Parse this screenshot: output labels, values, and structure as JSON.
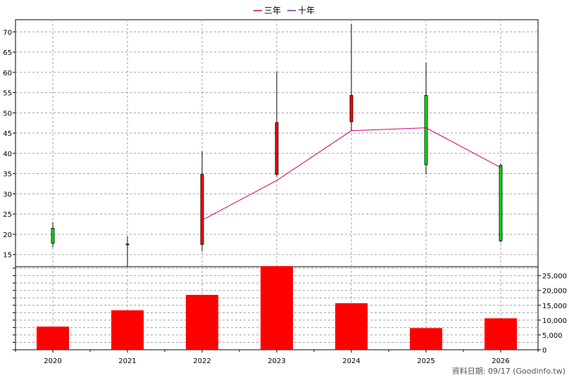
{
  "chart_data": [
    {
      "type": "candlestick",
      "categories": [
        "2020",
        "2021",
        "2022",
        "2023",
        "2024",
        "2025",
        "2026"
      ],
      "ohlc": [
        {
          "x": "2020",
          "open": 21.5,
          "high": 23.0,
          "low": 16.8,
          "close": 17.8
        },
        {
          "x": "2021",
          "open": 17.6,
          "high": 19.5,
          "low": 11.8,
          "close": 17.4
        },
        {
          "x": "2022",
          "open": 17.5,
          "high": 40.5,
          "low": 15.8,
          "close": 34.8
        },
        {
          "x": "2023",
          "open": 34.8,
          "high": 60.2,
          "low": 34.2,
          "close": 47.6
        },
        {
          "x": "2024",
          "open": 47.8,
          "high": 72.0,
          "low": 45.5,
          "close": 54.3
        },
        {
          "x": "2025",
          "open": 54.3,
          "high": 62.4,
          "low": 34.8,
          "close": 37.2
        },
        {
          "x": "2026",
          "open": 37.0,
          "high": 37.5,
          "low": 18.0,
          "close": 18.4
        }
      ],
      "series": [
        {
          "name": "三年",
          "color": "#d0006f",
          "points": [
            {
              "x": "2022",
              "y": 23.5
            },
            {
              "x": "2023",
              "y": 33.3
            },
            {
              "x": "2024",
              "y": 45.6
            },
            {
              "x": "2025",
              "y": 46.3
            },
            {
              "x": "2026",
              "y": 36.5
            }
          ]
        },
        {
          "name": "十年",
          "color": "#7030a0",
          "points": []
        }
      ],
      "ylim": [
        12,
        73
      ],
      "yticks": [
        15,
        20,
        25,
        30,
        35,
        40,
        45,
        50,
        55,
        60,
        65,
        70
      ],
      "up_color": "#ff0000",
      "down_color": "#00e000",
      "legend_position": "top-center",
      "grid": true
    },
    {
      "type": "bar",
      "categories": [
        "2020",
        "2021",
        "2022",
        "2023",
        "2024",
        "2025",
        "2026"
      ],
      "values": [
        7800,
        13300,
        18500,
        28200,
        15700,
        7300,
        10600
      ],
      "ylim": [
        0,
        28000
      ],
      "yticks": [
        0,
        5000,
        10000,
        15000,
        20000,
        25000
      ],
      "ytick_labels": [
        "0",
        "5,000",
        "10,000",
        "15,000",
        "20,000",
        "25,000"
      ],
      "bar_color": "#ff0000",
      "grid": true
    }
  ],
  "footer": "資料日期: 09/17  (Goodinfo.tw)"
}
